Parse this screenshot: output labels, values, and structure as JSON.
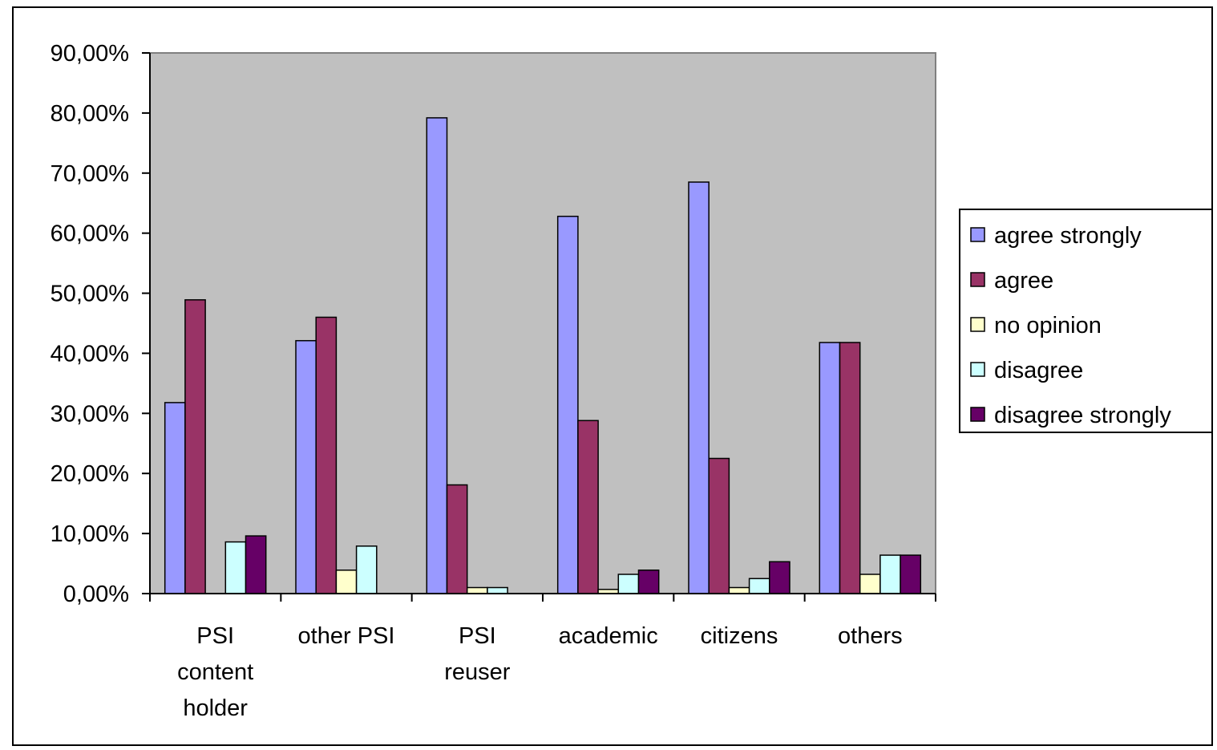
{
  "chart_data": {
    "type": "bar",
    "categories": [
      [
        "PSI",
        "content",
        "holder"
      ],
      [
        "other PSI"
      ],
      [
        "PSI",
        "reuser"
      ],
      [
        "academic"
      ],
      [
        "citizens"
      ],
      [
        "others"
      ]
    ],
    "series": [
      {
        "name": "agree strongly",
        "color": "#9999ff",
        "values": [
          31.8,
          42.1,
          79.2,
          62.8,
          68.5,
          41.8
        ]
      },
      {
        "name": "agree",
        "color": "#993366",
        "values": [
          48.9,
          46.0,
          18.1,
          28.8,
          22.5,
          41.8
        ]
      },
      {
        "name": "no opinion",
        "color": "#ffffcc",
        "values": [
          0.0,
          3.9,
          1.0,
          0.7,
          1.0,
          3.2
        ]
      },
      {
        "name": "disagree",
        "color": "#ccffff",
        "values": [
          8.6,
          7.9,
          1.0,
          3.2,
          2.5,
          6.4
        ]
      },
      {
        "name": "disagree strongly",
        "color": "#660066",
        "values": [
          9.6,
          0.0,
          0.0,
          3.9,
          5.3,
          6.4
        ]
      }
    ],
    "y_ticks": [
      "0,00%",
      "10,00%",
      "20,00%",
      "30,00%",
      "40,00%",
      "50,00%",
      "60,00%",
      "70,00%",
      "80,00%",
      "90,00%"
    ],
    "ylim": [
      0,
      90
    ],
    "grid": false,
    "legend_position": "right",
    "plot_background": "#c0c0c0"
  }
}
